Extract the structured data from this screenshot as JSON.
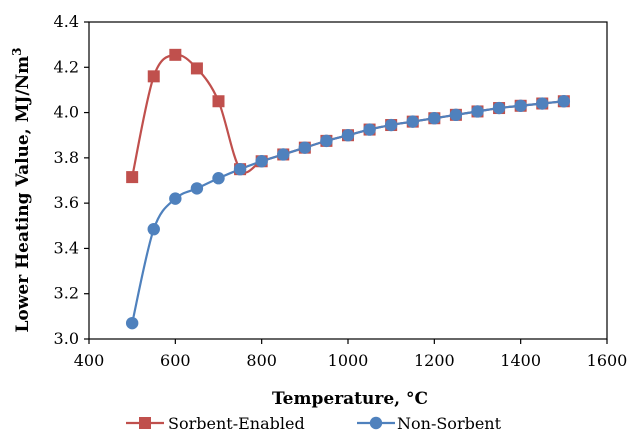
{
  "chart_data": {
    "type": "line",
    "title": "",
    "xlabel": "Temperature, ",
    "xlabel_unit": "°C",
    "ylabel": "Lower Heating Value, MJ/Nm",
    "ylabel_sup": "3",
    "xlim": [
      400,
      1600
    ],
    "ylim": [
      3.0,
      4.4
    ],
    "xticks": [
      "400",
      "600",
      "800",
      "1000",
      "1200",
      "1400",
      "1600"
    ],
    "yticks": [
      "3.0",
      "3.2",
      "3.4",
      "3.6",
      "3.8",
      "4.0",
      "4.2",
      "4.4"
    ],
    "grid": false,
    "legend_position": "bottom",
    "series": [
      {
        "name": "Sorbent-Enabled",
        "color": "#c0504d",
        "marker": "square",
        "x": [
          500,
          550,
          600,
          650,
          700,
          750,
          800,
          850,
          900,
          950,
          1000,
          1050,
          1100,
          1150,
          1200,
          1250,
          1300,
          1350,
          1400,
          1450,
          1500
        ],
        "y": [
          3.715,
          4.16,
          4.255,
          4.195,
          4.05,
          3.75,
          3.785,
          3.815,
          3.845,
          3.875,
          3.9,
          3.925,
          3.945,
          3.96,
          3.975,
          3.99,
          4.005,
          4.02,
          4.03,
          4.04,
          4.05
        ]
      },
      {
        "name": "Non-Sorbent",
        "color": "#4f81bd",
        "marker": "circle",
        "x": [
          500,
          550,
          600,
          650,
          700,
          750,
          800,
          850,
          900,
          950,
          1000,
          1050,
          1100,
          1150,
          1200,
          1250,
          1300,
          1350,
          1400,
          1450,
          1500
        ],
        "y": [
          3.07,
          3.485,
          3.62,
          3.665,
          3.71,
          3.75,
          3.785,
          3.815,
          3.845,
          3.875,
          3.9,
          3.925,
          3.945,
          3.96,
          3.975,
          3.99,
          4.005,
          4.02,
          4.03,
          4.04,
          4.05
        ]
      }
    ]
  }
}
